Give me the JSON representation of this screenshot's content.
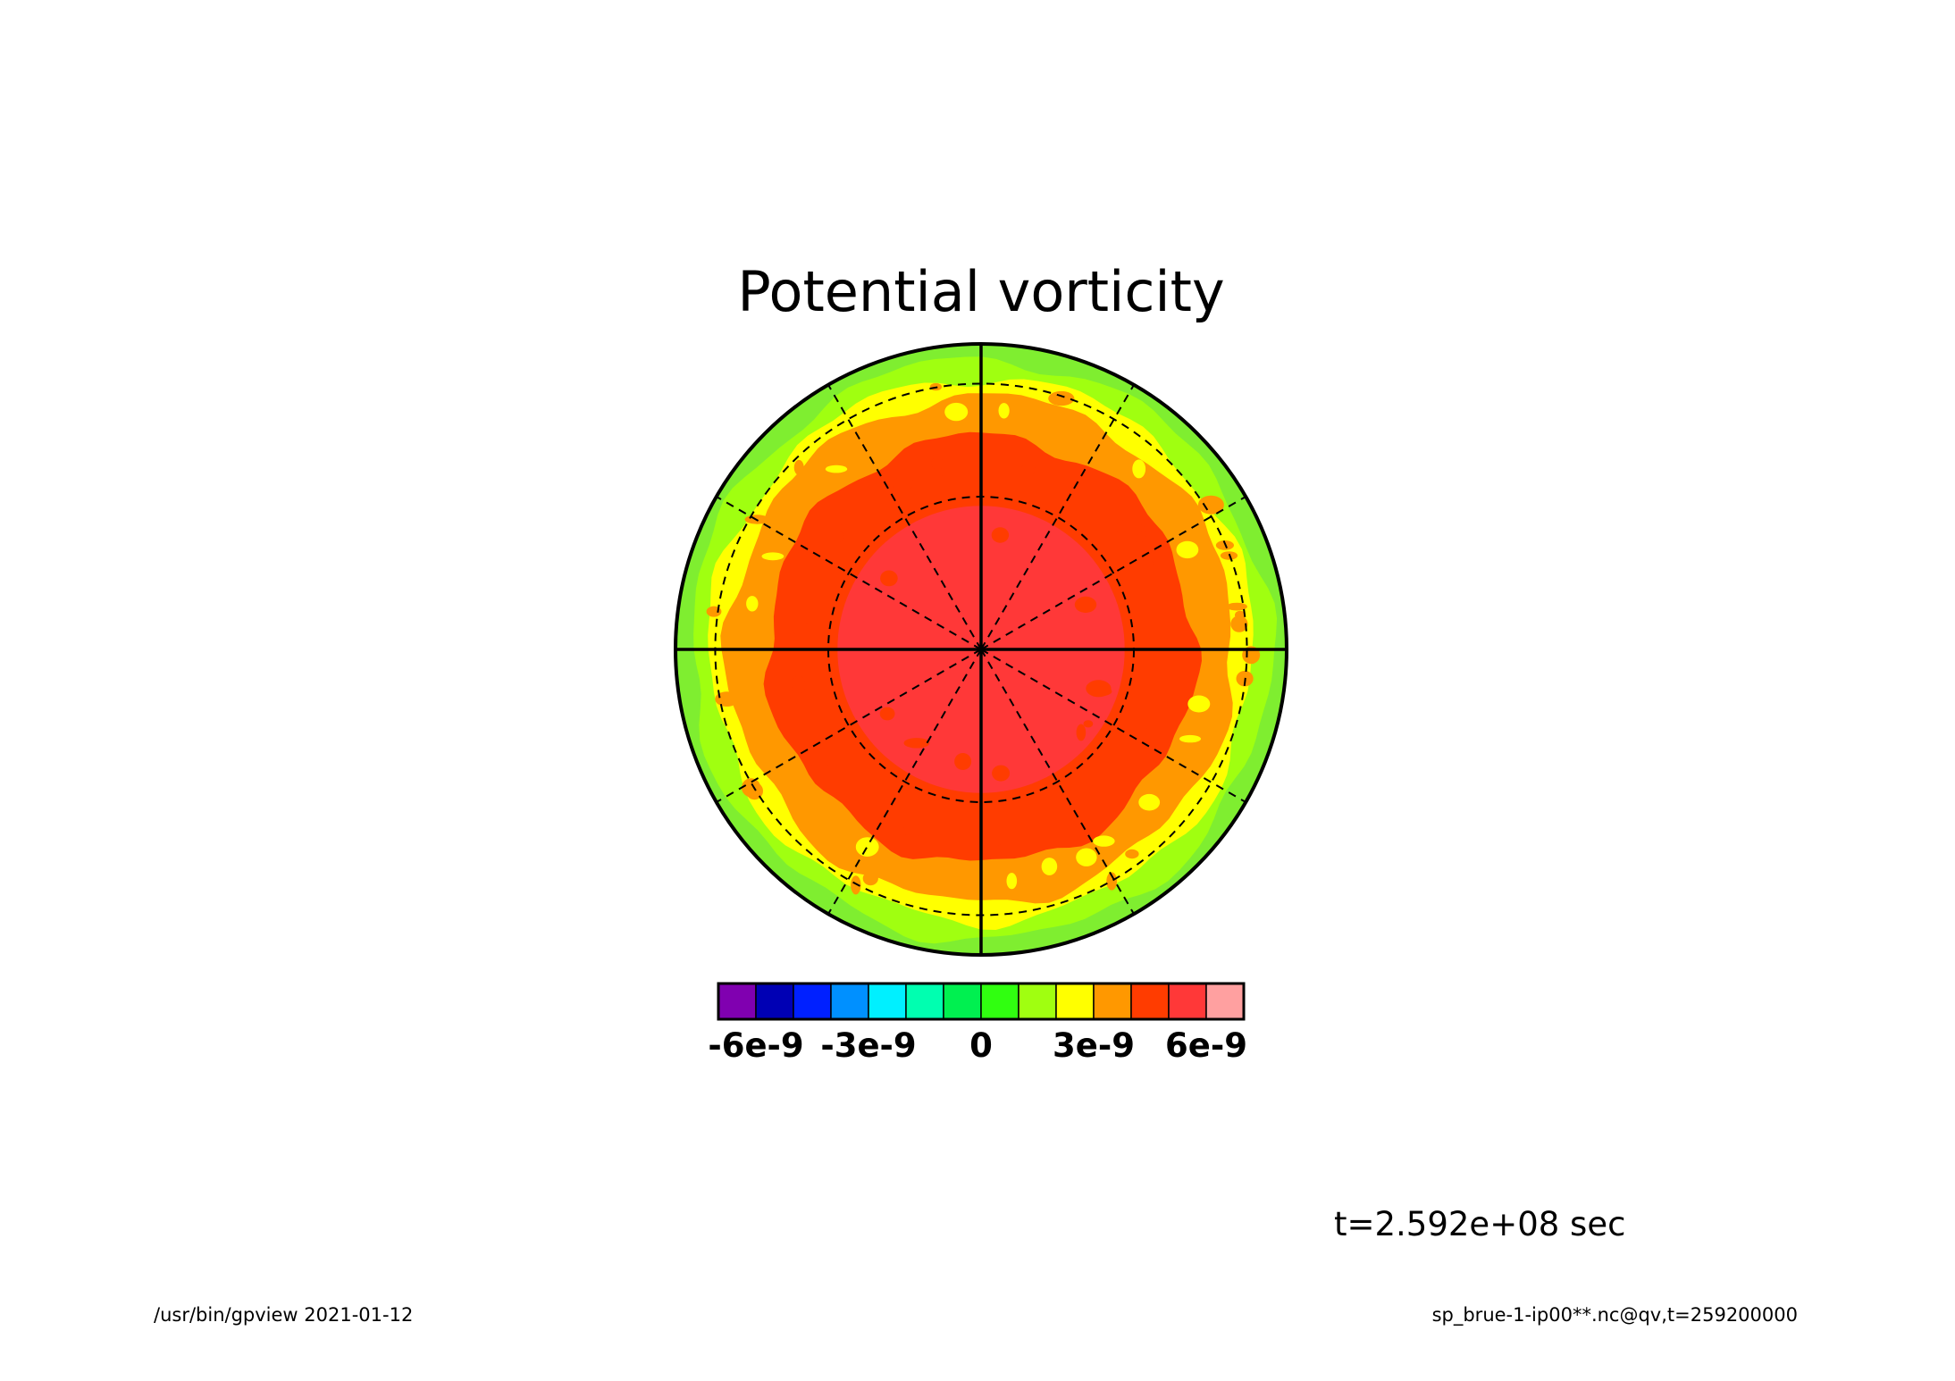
{
  "chart_data": {
    "type": "heatmap",
    "projection": "polar stereographic",
    "title": "Potential vorticity",
    "field": "qv",
    "grid": true,
    "colorbar": {
      "placement": "bottom",
      "levels": [
        -7e-09,
        -6e-09,
        -5e-09,
        -4e-09,
        -3e-09,
        -2e-09,
        -1e-09,
        0,
        1e-09,
        2e-09,
        3e-09,
        4e-09,
        5e-09,
        6e-09,
        7e-09
      ],
      "colors": [
        "#8000b0",
        "#0000b4",
        "#0020ff",
        "#0090ff",
        "#00f0ff",
        "#00ffb0",
        "#00f050",
        "#30ff10",
        "#a0ff10",
        "#ffff00",
        "#ff9800",
        "#ff3c00",
        "#ff3838",
        "#ffa0a0"
      ],
      "tick_labels": [
        "-6e-9",
        "-3e-9",
        "0",
        "3e-9",
        "6e-9"
      ],
      "tick_values": [
        -6e-09,
        -3e-09,
        0,
        3e-09,
        6e-09
      ]
    },
    "radial_profile": [
      {
        "r_frac": 0.47,
        "value": 5.5e-09,
        "color": "#ff3838"
      },
      {
        "r_frac": 0.7,
        "value": 4.5e-09,
        "color": "#ff3c00"
      },
      {
        "r_frac": 0.83,
        "value": 3.5e-09,
        "color": "#ff9800"
      },
      {
        "r_frac": 0.89,
        "value": 2.5e-09,
        "color": "#ffff00"
      },
      {
        "r_frac": 0.95,
        "value": 1.5e-09,
        "color": "#a0ff10"
      },
      {
        "r_frac": 1.0,
        "value": 5e-10,
        "color": "#7fee30"
      }
    ]
  },
  "annotations": {
    "time_label": "t=2.592e+08 sec",
    "footer_left": "/usr/bin/gpview  2021-01-12",
    "footer_right": "sp_brue-1-ip00**.nc@qv,t=259200000"
  }
}
